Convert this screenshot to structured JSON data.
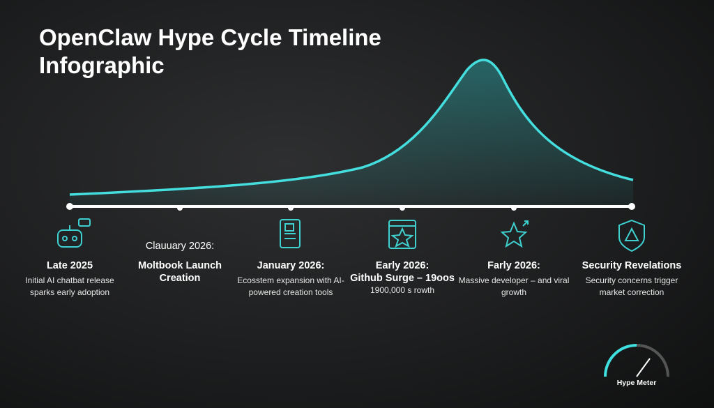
{
  "header": {
    "title": "OpenClaw Hype Cycle Timeline Infographic"
  },
  "milestones": [
    {
      "heading": "Late 2025",
      "description": "Initial AI chatbat release sparks early adoption"
    },
    {
      "label": "Clauuary 2026:",
      "heading": "Moltbook Launch Creation"
    },
    {
      "heading": "January 2026:",
      "description": "Ecosstem expansion with AI-powered creation tools"
    },
    {
      "heading": "Early 2026:",
      "subheading": "Github Surge – 19oos",
      "description": "1900,000 s rowth"
    },
    {
      "heading": "Farly 2026:",
      "description": "Massive developer – and viral growth"
    },
    {
      "heading": "Security Revelations",
      "description": "Security concerns trigger market correction"
    }
  ],
  "meter": {
    "label": "Hype Meter"
  }
}
